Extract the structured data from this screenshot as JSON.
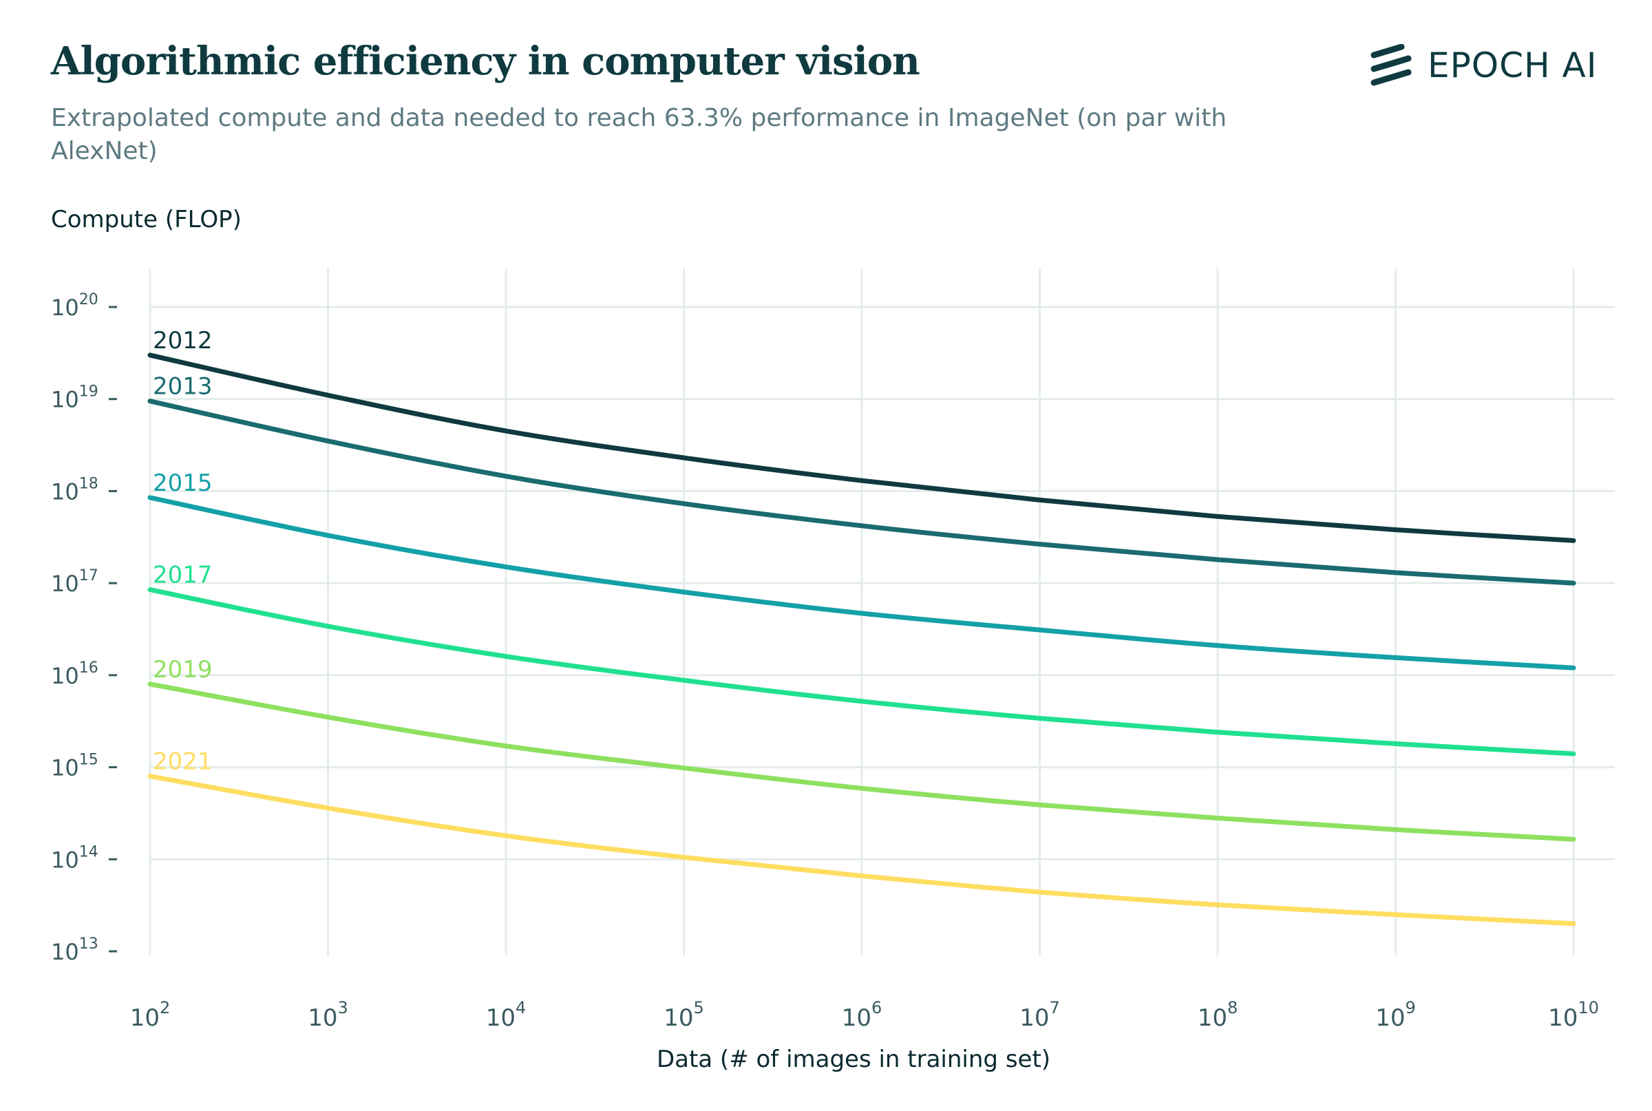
{
  "brand": {
    "name": "EPOCH AI",
    "icon": "epoch-stripes-logo",
    "color": "#0e3a40"
  },
  "chart_data": {
    "type": "line",
    "title": "Algorithmic efficiency in computer vision",
    "subtitle": "Extrapolated compute and data needed to reach 63.3% performance in ImageNet (on par with AlexNet)",
    "xlabel": "Data (# of images in training set)",
    "ylabel": "Compute (FLOP)",
    "xscale": "log",
    "yscale": "log",
    "xlim": [
      100,
      10000000000
    ],
    "ylim": [
      10000000000000,
      100000000000000000000
    ],
    "grid": true,
    "legend": "inline labels at line start",
    "x_ticks": [
      {
        "base": "10",
        "exp": "2"
      },
      {
        "base": "10",
        "exp": "3"
      },
      {
        "base": "10",
        "exp": "4"
      },
      {
        "base": "10",
        "exp": "5"
      },
      {
        "base": "10",
        "exp": "6"
      },
      {
        "base": "10",
        "exp": "7"
      },
      {
        "base": "10",
        "exp": "8"
      },
      {
        "base": "10",
        "exp": "9"
      },
      {
        "base": "10",
        "exp": "10"
      }
    ],
    "y_ticks": [
      {
        "base": "10",
        "exp": "20"
      },
      {
        "base": "10",
        "exp": "19"
      },
      {
        "base": "10",
        "exp": "18"
      },
      {
        "base": "10",
        "exp": "17"
      },
      {
        "base": "10",
        "exp": "16"
      },
      {
        "base": "10",
        "exp": "15"
      },
      {
        "base": "10",
        "exp": "14"
      },
      {
        "base": "10",
        "exp": "13"
      }
    ],
    "x": [
      100,
      1000,
      10000,
      100000,
      1000000,
      10000000,
      100000000,
      1000000000,
      10000000000
    ],
    "series": [
      {
        "name": "2012",
        "color": "#0e3a40",
        "values": [
          3e+19,
          1.1e+19,
          4.5e+18,
          2.3e+18,
          1.3e+18,
          8e+17,
          5.3e+17,
          3.8e+17,
          2.9e+17
        ]
      },
      {
        "name": "2013",
        "color": "#1a6b70",
        "values": [
          9.5e+18,
          3.5e+18,
          1.45e+18,
          7.3e+17,
          4.2e+17,
          2.65e+17,
          1.8e+17,
          1.3e+17,
          1e+17
        ]
      },
      {
        "name": "2015",
        "color": "#14a0a8",
        "values": [
          8.5e+17,
          3.3e+17,
          1.5e+17,
          8e+16,
          4.7e+16,
          3.1e+16,
          2.1e+16,
          1.55e+16,
          1.2e+16
        ]
      },
      {
        "name": "2017",
        "color": "#20e090",
        "values": [
          8.5e+16,
          3.4e+16,
          1.6e+16,
          8800000000000000.0,
          5200000000000000.0,
          3400000000000000.0,
          2400000000000000.0,
          1800000000000000.0,
          1400000000000000.0
        ]
      },
      {
        "name": "2019",
        "color": "#8ee060",
        "values": [
          8000000000000000.0,
          3500000000000000.0,
          1700000000000000.0,
          980000000000000.0,
          590000000000000.0,
          390000000000000.0,
          280000000000000.0,
          210000000000000.0,
          165000000000000.0
        ]
      },
      {
        "name": "2021",
        "color": "#ffdd60",
        "values": [
          800000000000000.0,
          360000000000000.0,
          180000000000000.0,
          105000000000000.0,
          66000000000000.0,
          44000000000000.0,
          32000000000000.0,
          25000000000000.0,
          20000000000000.0
        ]
      }
    ]
  }
}
